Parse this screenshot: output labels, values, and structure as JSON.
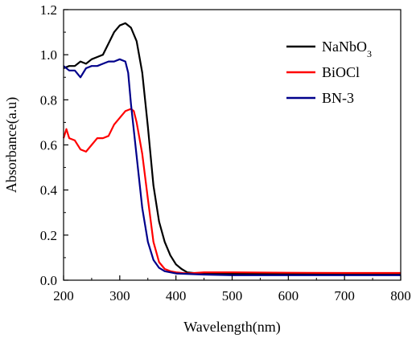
{
  "chart_data": {
    "type": "line",
    "xlabel": "Wavelength(nm)",
    "ylabel": "Absorbance(a.u)",
    "xlim": [
      200,
      800
    ],
    "ylim": [
      0.0,
      1.2
    ],
    "x_ticks": [
      "200",
      "300",
      "400",
      "500",
      "600",
      "700",
      "800"
    ],
    "y_ticks": [
      "0.0",
      "0.2",
      "0.4",
      "0.6",
      "0.8",
      "1.0",
      "1.2"
    ],
    "grid": false,
    "legend_position": "top-right",
    "series": [
      {
        "name": "NaNbO",
        "name_subscript": "3",
        "color": "#000000",
        "points": [
          [
            200,
            0.94
          ],
          [
            210,
            0.95
          ],
          [
            220,
            0.95
          ],
          [
            230,
            0.97
          ],
          [
            240,
            0.96
          ],
          [
            250,
            0.98
          ],
          [
            260,
            0.99
          ],
          [
            270,
            1.0
          ],
          [
            280,
            1.05
          ],
          [
            290,
            1.1
          ],
          [
            300,
            1.13
          ],
          [
            310,
            1.14
          ],
          [
            320,
            1.12
          ],
          [
            330,
            1.06
          ],
          [
            340,
            0.92
          ],
          [
            350,
            0.68
          ],
          [
            360,
            0.42
          ],
          [
            370,
            0.26
          ],
          [
            380,
            0.17
          ],
          [
            390,
            0.11
          ],
          [
            400,
            0.07
          ],
          [
            410,
            0.05
          ],
          [
            420,
            0.035
          ],
          [
            440,
            0.03
          ],
          [
            500,
            0.028
          ],
          [
            600,
            0.028
          ],
          [
            700,
            0.028
          ],
          [
            800,
            0.028
          ]
        ]
      },
      {
        "name": "BiOCl",
        "color": "#ff0000",
        "points": [
          [
            200,
            0.63
          ],
          [
            205,
            0.67
          ],
          [
            210,
            0.63
          ],
          [
            220,
            0.62
          ],
          [
            230,
            0.58
          ],
          [
            240,
            0.57
          ],
          [
            250,
            0.6
          ],
          [
            260,
            0.63
          ],
          [
            270,
            0.63
          ],
          [
            280,
            0.64
          ],
          [
            290,
            0.69
          ],
          [
            300,
            0.72
          ],
          [
            310,
            0.75
          ],
          [
            320,
            0.76
          ],
          [
            325,
            0.75
          ],
          [
            330,
            0.7
          ],
          [
            340,
            0.56
          ],
          [
            350,
            0.36
          ],
          [
            360,
            0.17
          ],
          [
            370,
            0.08
          ],
          [
            380,
            0.05
          ],
          [
            390,
            0.04
          ],
          [
            400,
            0.035
          ],
          [
            420,
            0.03
          ],
          [
            450,
            0.035
          ],
          [
            500,
            0.035
          ],
          [
            600,
            0.033
          ],
          [
            700,
            0.032
          ],
          [
            800,
            0.032
          ]
        ]
      },
      {
        "name": "BN-3",
        "color": "#00008b",
        "points": [
          [
            200,
            0.95
          ],
          [
            210,
            0.93
          ],
          [
            220,
            0.93
          ],
          [
            230,
            0.9
          ],
          [
            240,
            0.94
          ],
          [
            250,
            0.95
          ],
          [
            260,
            0.95
          ],
          [
            270,
            0.96
          ],
          [
            280,
            0.97
          ],
          [
            290,
            0.97
          ],
          [
            300,
            0.98
          ],
          [
            310,
            0.97
          ],
          [
            315,
            0.92
          ],
          [
            320,
            0.78
          ],
          [
            330,
            0.55
          ],
          [
            340,
            0.32
          ],
          [
            350,
            0.17
          ],
          [
            360,
            0.09
          ],
          [
            370,
            0.055
          ],
          [
            380,
            0.04
          ],
          [
            400,
            0.03
          ],
          [
            450,
            0.025
          ],
          [
            500,
            0.022
          ],
          [
            600,
            0.022
          ],
          [
            700,
            0.022
          ],
          [
            800,
            0.022
          ]
        ]
      }
    ]
  }
}
